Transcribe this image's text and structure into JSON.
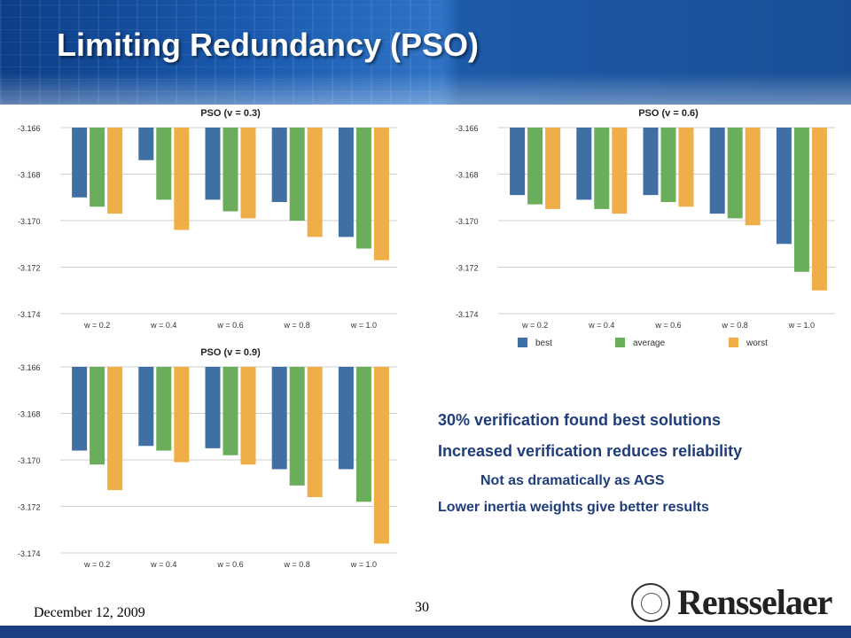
{
  "slide": {
    "title": "Limiting Redundancy (PSO)",
    "date": "December 12, 2009",
    "page_number": "30",
    "logo_text": "Rensselaer"
  },
  "bullets": {
    "item1": "30% verification found best solutions",
    "item2": "Increased verification reduces reliability",
    "item2_sub": "Not as dramatically as AGS",
    "item3": "Lower inertia weights give better results"
  },
  "legend": {
    "best": "best",
    "average": "average",
    "worst": "worst"
  },
  "colors": {
    "best": "#3f6fa3",
    "average": "#6aae5b",
    "worst": "#efae47",
    "title_text": "#1f3d7a",
    "header": "#1a5bb0"
  },
  "chart_data": [
    {
      "type": "bar",
      "title": "PSO (v = 0.3)",
      "categories": [
        "w = 0.2",
        "w = 0.4",
        "w = 0.6",
        "w = 0.8",
        "w = 1.0"
      ],
      "ylim": [
        -3.174,
        -3.166
      ],
      "yticks": [
        "-3.166",
        "-3.168",
        "-3.170",
        "-3.172",
        "-3.174"
      ],
      "series": [
        {
          "name": "best",
          "values": [
            -3.169,
            -3.1674,
            -3.1691,
            -3.1692,
            -3.1707
          ]
        },
        {
          "name": "average",
          "values": [
            -3.1694,
            -3.1691,
            -3.1696,
            -3.17,
            -3.1712
          ]
        },
        {
          "name": "worst",
          "values": [
            -3.1697,
            -3.1704,
            -3.1699,
            -3.1707,
            -3.1717
          ]
        }
      ]
    },
    {
      "type": "bar",
      "title": "PSO (v = 0.6)",
      "categories": [
        "w = 0.2",
        "w = 0.4",
        "w = 0.6",
        "w = 0.8",
        "w = 1.0"
      ],
      "ylim": [
        -3.174,
        -3.166
      ],
      "yticks": [
        "-3.166",
        "-3.168",
        "-3.170",
        "-3.172",
        "-3.174"
      ],
      "legend": "bottom",
      "series": [
        {
          "name": "best",
          "values": [
            -3.1689,
            -3.1691,
            -3.1689,
            -3.1697,
            -3.171
          ]
        },
        {
          "name": "average",
          "values": [
            -3.1693,
            -3.1695,
            -3.1692,
            -3.1699,
            -3.1722
          ]
        },
        {
          "name": "worst",
          "values": [
            -3.1695,
            -3.1697,
            -3.1694,
            -3.1702,
            -3.173
          ]
        }
      ]
    },
    {
      "type": "bar",
      "title": "PSO (v = 0.9)",
      "categories": [
        "w = 0.2",
        "w = 0.4",
        "w = 0.6",
        "w = 0.8",
        "w = 1.0"
      ],
      "ylim": [
        -3.174,
        -3.166
      ],
      "yticks": [
        "-3.166",
        "-3.168",
        "-3.170",
        "-3.172",
        "-3.174"
      ],
      "series": [
        {
          "name": "best",
          "values": [
            -3.1696,
            -3.1694,
            -3.1695,
            -3.1704,
            -3.1704
          ]
        },
        {
          "name": "average",
          "values": [
            -3.1702,
            -3.1696,
            -3.1698,
            -3.1711,
            -3.1718
          ]
        },
        {
          "name": "worst",
          "values": [
            -3.1713,
            -3.1701,
            -3.1702,
            -3.1716,
            -3.1736
          ]
        }
      ]
    }
  ]
}
